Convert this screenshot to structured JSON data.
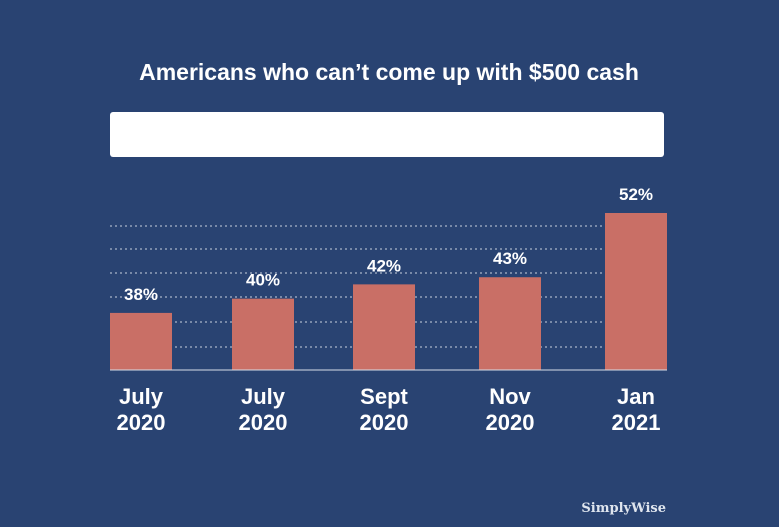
{
  "chart_data": {
    "type": "bar",
    "title": "Americans who can’t come up with $500 cash",
    "categories": [
      "July\n2020",
      "July\n2020",
      "Sept\n2020",
      "Nov\n2020",
      "Jan\n2021"
    ],
    "values": [
      38,
      40,
      42,
      43,
      52
    ],
    "value_labels": [
      "38%",
      "40%",
      "42%",
      "43%",
      "52%"
    ],
    "ylim": [
      30,
      52
    ],
    "grid": true
  },
  "brand": "SimplyWise",
  "colors": {
    "background": "#294372",
    "bar": "#c96f66",
    "text": "#ffffff"
  }
}
